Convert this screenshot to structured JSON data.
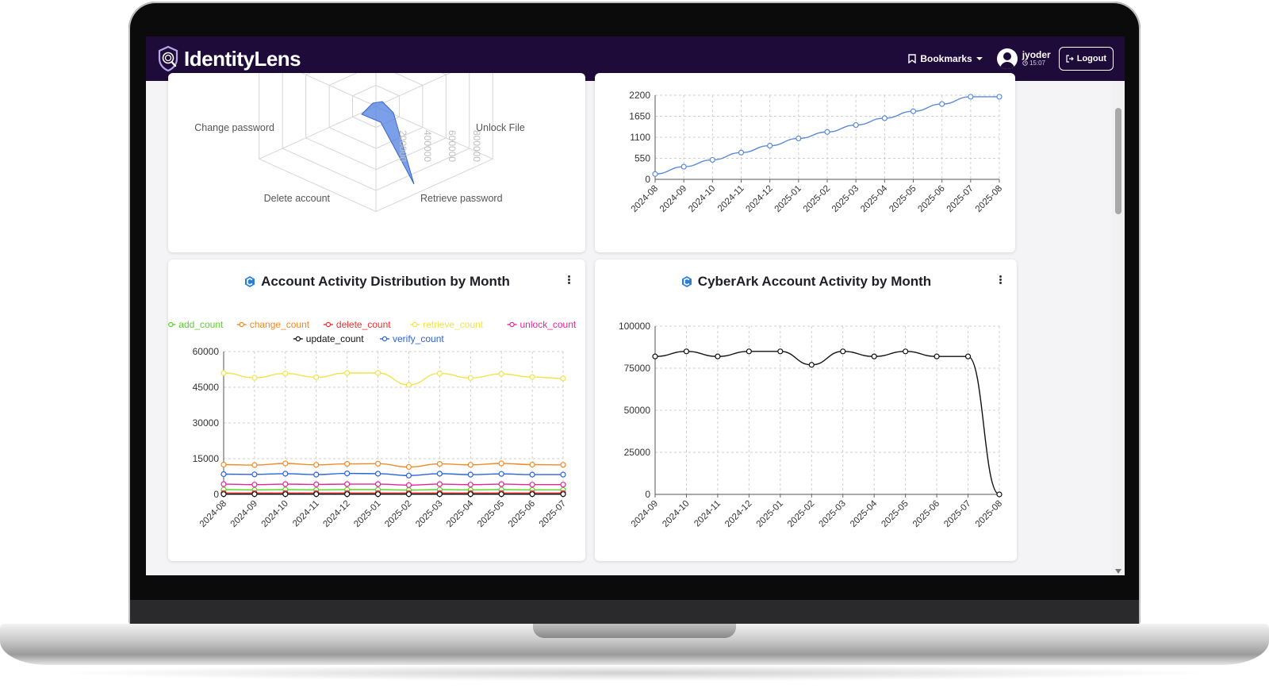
{
  "app": {
    "name": "IdentityLens"
  },
  "nav": {
    "bookmarks_label": "Bookmarks",
    "username": "jyoder",
    "session_time": "15:07",
    "logout_label": "Logout"
  },
  "cards": {
    "radar": {
      "chart_data": {
        "type": "radar",
        "indicators": [
          "Unlock File",
          "Retrieve password",
          "Delete account",
          "Change password"
        ],
        "radial_ticks": [
          "200000",
          "400000",
          "600000",
          "800000"
        ]
      }
    },
    "growth": {
      "chart_data": {
        "type": "line",
        "categories": [
          "2024-08",
          "2024-09",
          "2024-10",
          "2024-11",
          "2024-12",
          "2025-01",
          "2025-02",
          "2025-03",
          "2025-04",
          "2025-05",
          "2025-06",
          "2025-07",
          "2025-08"
        ],
        "values": [
          140,
          330,
          510,
          700,
          880,
          1070,
          1240,
          1420,
          1600,
          1780,
          1970,
          2160,
          2160
        ],
        "ylim": [
          0,
          2200
        ],
        "yticks": [
          "0",
          "550",
          "1100",
          "1650",
          "2200"
        ],
        "color": "#5b8ad6",
        "grid": true
      }
    },
    "distribution": {
      "title": "Account Activity Distribution by Month",
      "chart_data": {
        "type": "line",
        "categories": [
          "2024-08",
          "2024-09",
          "2024-10",
          "2024-11",
          "2024-12",
          "2025-01",
          "2025-02",
          "2025-03",
          "2025-04",
          "2025-05",
          "2025-06",
          "2025-07"
        ],
        "ylim": [
          0,
          60000
        ],
        "yticks": [
          "0",
          "15000",
          "30000",
          "45000",
          "60000"
        ],
        "legend_position": "top",
        "grid": true,
        "series": [
          {
            "name": "add_count",
            "color": "#5ad12a",
            "values": [
              2000,
              1900,
              2000,
              1900,
              2000,
              2000,
              1800,
              2000,
              1900,
              2000,
              1900,
              1900
            ]
          },
          {
            "name": "change_count",
            "color": "#f08a24",
            "values": [
              12500,
              12300,
              13000,
              12400,
              12800,
              12900,
              11500,
              12800,
              12400,
              13000,
              12500,
              12400
            ]
          },
          {
            "name": "delete_count",
            "color": "#e8312f",
            "values": [
              600,
              600,
              600,
              600,
              600,
              600,
              600,
              600,
              600,
              600,
              600,
              600
            ]
          },
          {
            "name": "retrieve_count",
            "color": "#f2e34a",
            "values": [
              51000,
              49000,
              50800,
              49200,
              51000,
              51000,
              46000,
              50800,
              48900,
              50600,
              49300,
              48700
            ]
          },
          {
            "name": "unlock_count",
            "color": "#e6259a",
            "values": [
              4300,
              4100,
              4300,
              4200,
              4300,
              4300,
              3900,
              4300,
              4100,
              4300,
              4100,
              4100
            ]
          },
          {
            "name": "update_count",
            "color": "#111111",
            "values": [
              100,
              100,
              100,
              100,
              100,
              100,
              100,
              100,
              100,
              100,
              100,
              100
            ]
          },
          {
            "name": "verify_count",
            "color": "#2a62e0",
            "values": [
              8500,
              8400,
              8700,
              8300,
              8800,
              8700,
              7900,
              8700,
              8300,
              8600,
              8300,
              8300
            ]
          }
        ]
      }
    },
    "cyberark": {
      "title": "CyberArk Account Activity by Month",
      "chart_data": {
        "type": "line",
        "categories": [
          "2024-09",
          "2024-10",
          "2024-11",
          "2024-12",
          "2025-01",
          "2025-02",
          "2025-03",
          "2025-04",
          "2025-05",
          "2025-06",
          "2025-07",
          "2025-08"
        ],
        "values": [
          82000,
          85000,
          82000,
          85000,
          85000,
          77000,
          85000,
          82000,
          85000,
          82000,
          82000,
          0
        ],
        "ylim": [
          0,
          100000
        ],
        "yticks": [
          "0",
          "25000",
          "50000",
          "75000",
          "100000"
        ],
        "color": "#111111",
        "grid": true
      }
    }
  }
}
